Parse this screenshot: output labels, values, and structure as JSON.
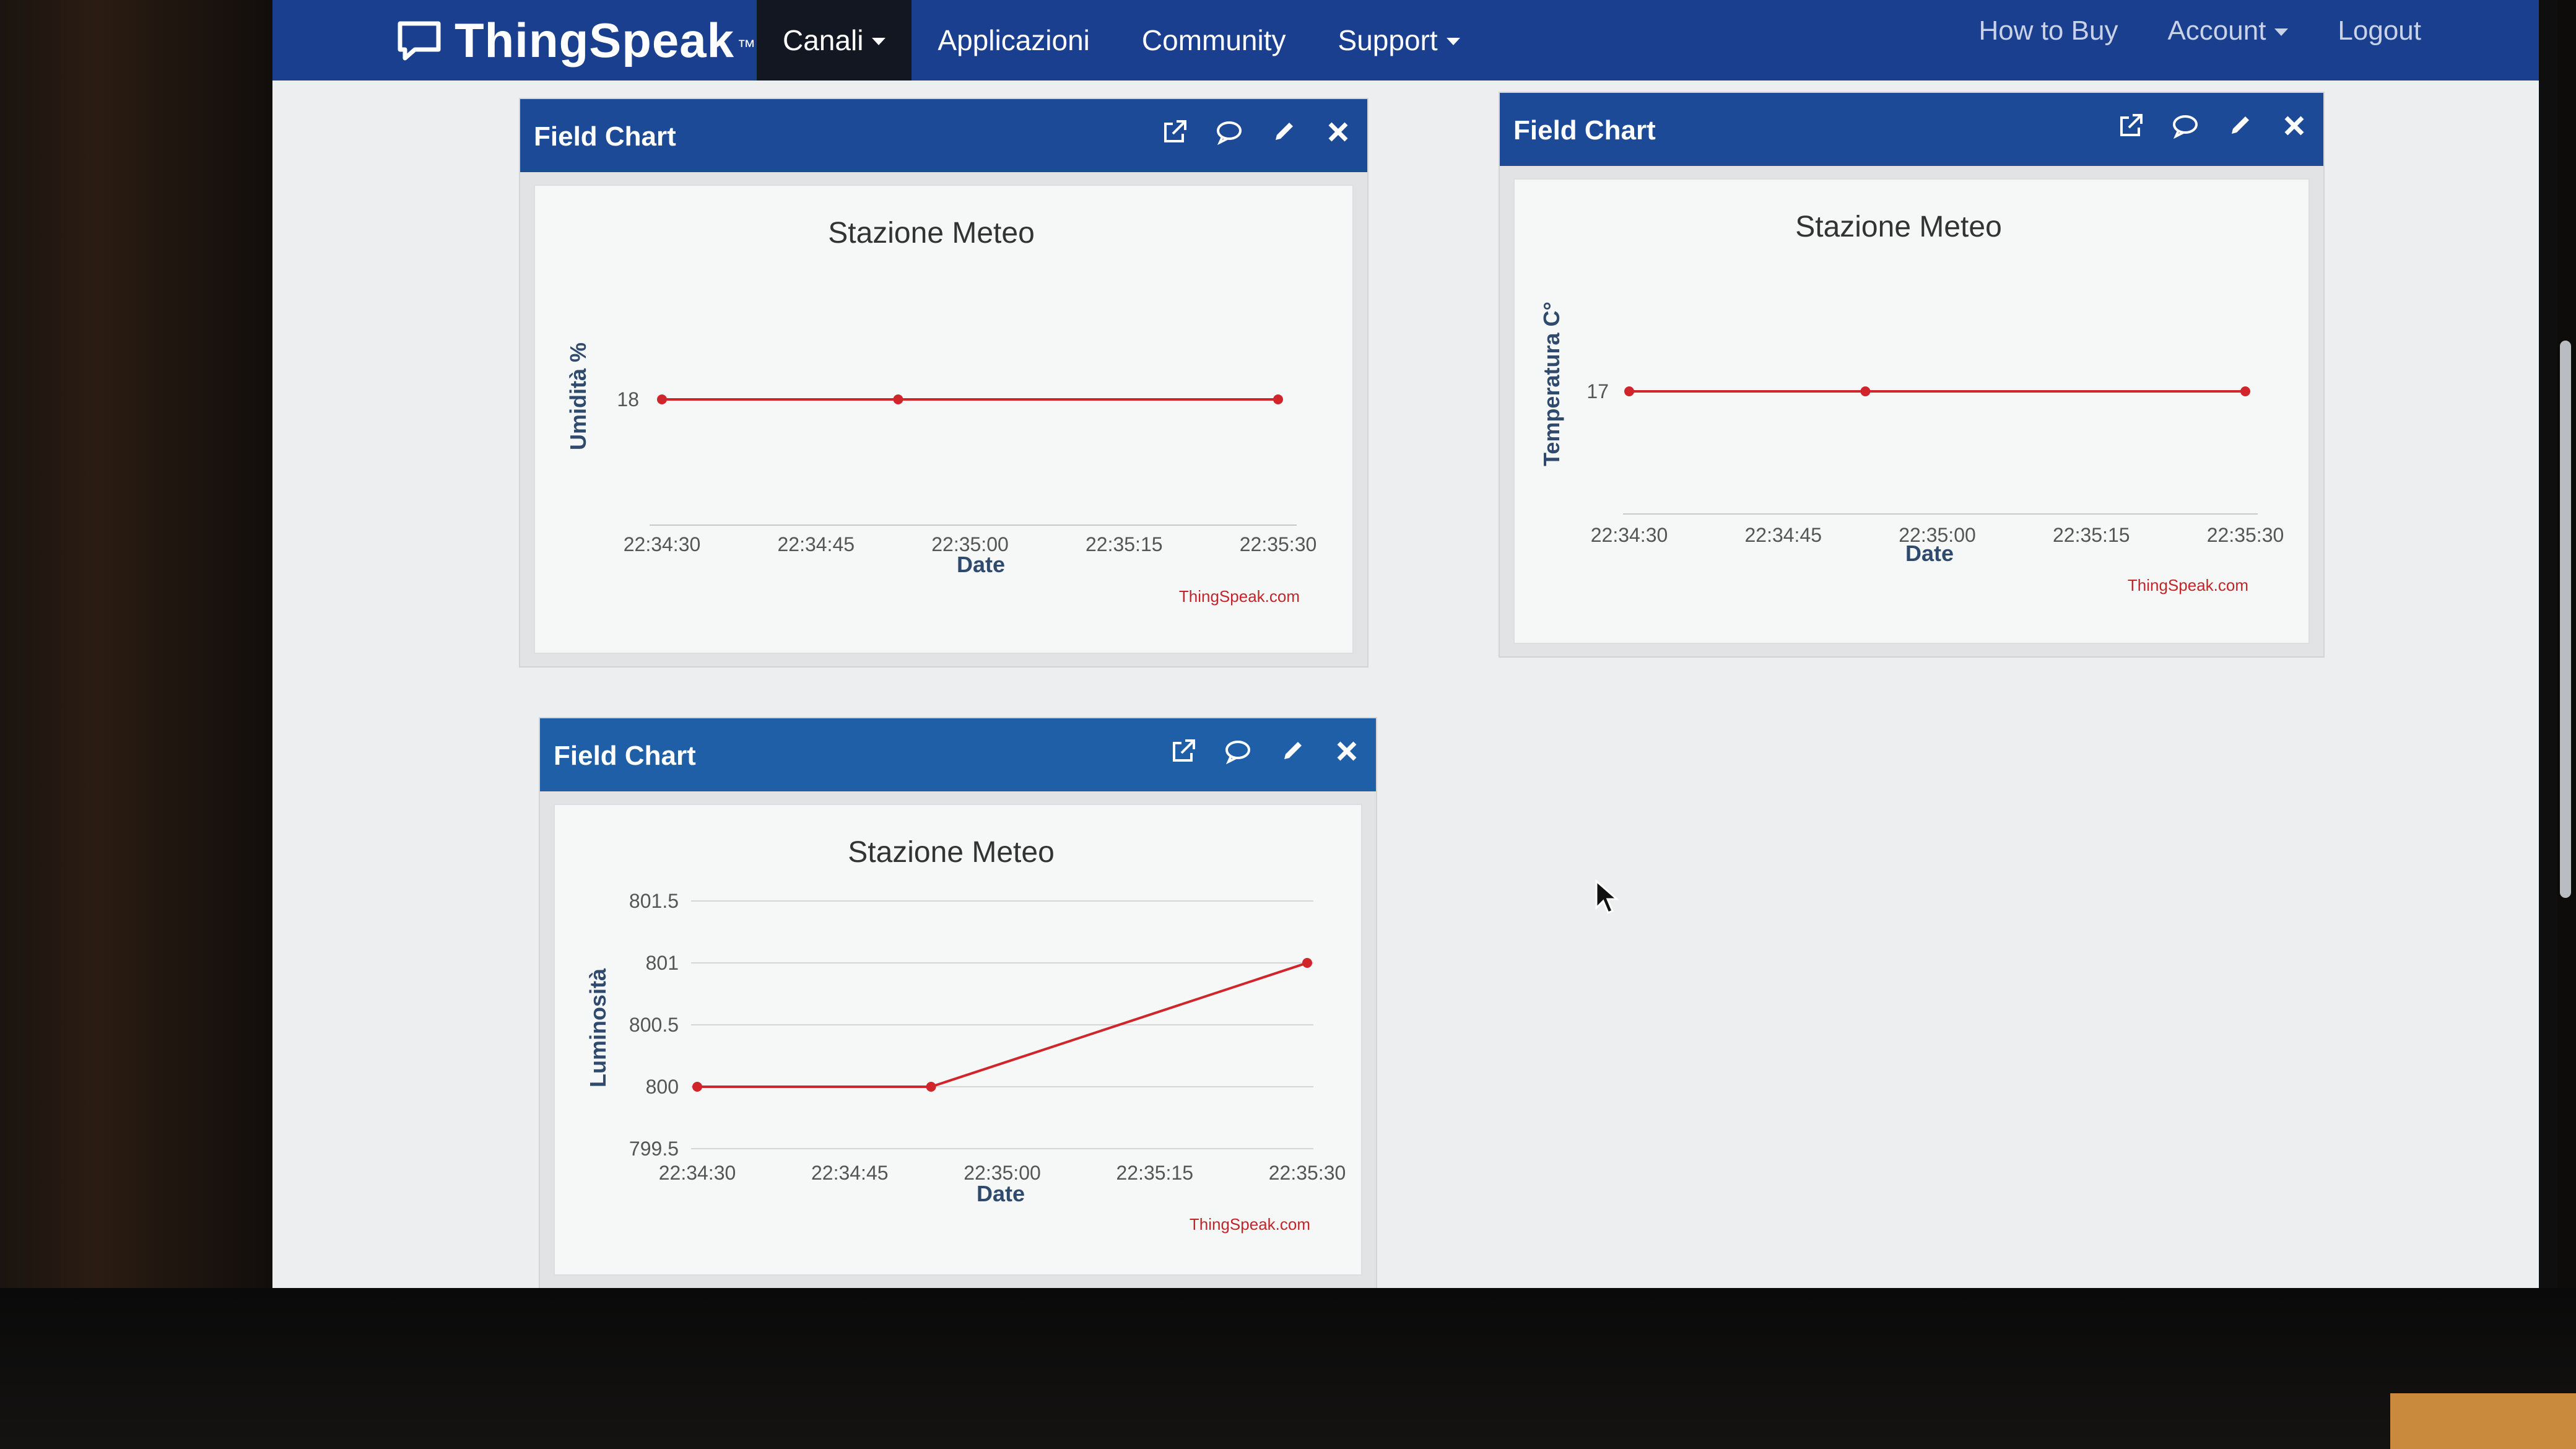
{
  "navbar": {
    "brand": "ThingSpeak",
    "brand_tm": "™",
    "left_items": [
      {
        "label": "Canali",
        "dropdown": true,
        "active": true
      },
      {
        "label": "Applicazioni",
        "dropdown": false,
        "active": false
      },
      {
        "label": "Community",
        "dropdown": false,
        "active": false
      },
      {
        "label": "Support",
        "dropdown": true,
        "active": false
      }
    ],
    "right_items": [
      {
        "label": "How to Buy",
        "dropdown": false
      },
      {
        "label": "Account",
        "dropdown": true
      },
      {
        "label": "Logout",
        "dropdown": false
      }
    ],
    "colors": {
      "background": "#1a3f8f",
      "active_item": "#131722"
    }
  },
  "panels": [
    {
      "title": "Field Chart",
      "actions": [
        "external-link-icon",
        "comment-icon",
        "pencil-icon",
        "close-icon"
      ],
      "credit": "ThingSpeak.com",
      "chart_data": {
        "type": "line",
        "title": "Stazione Meteo",
        "xlabel": "Date",
        "ylabel": "Umidità %",
        "x_ticks": [
          "22:34:30",
          "22:34:45",
          "22:35:00",
          "22:35:15",
          "22:35:30"
        ],
        "y_ticks": [
          "18"
        ],
        "ylim": [
          17.5,
          18.5
        ],
        "series": [
          {
            "color": "#d0262b",
            "x": [
              "22:34:30",
              "22:34:53",
              "22:35:30"
            ],
            "y": [
              18,
              18,
              18
            ]
          }
        ]
      }
    },
    {
      "title": "Field Chart",
      "actions": [
        "external-link-icon",
        "comment-icon",
        "pencil-icon",
        "close-icon"
      ],
      "credit": "ThingSpeak.com",
      "chart_data": {
        "type": "line",
        "title": "Stazione Meteo",
        "xlabel": "Date",
        "ylabel": "Temperatura C°",
        "x_ticks": [
          "22:34:30",
          "22:34:45",
          "22:35:00",
          "22:35:15",
          "22:35:30"
        ],
        "y_ticks": [
          "17"
        ],
        "ylim": [
          16.5,
          17.5
        ],
        "series": [
          {
            "color": "#d0262b",
            "x": [
              "22:34:30",
              "22:34:53",
              "22:35:30"
            ],
            "y": [
              17,
              17,
              17
            ]
          }
        ]
      }
    },
    {
      "title": "Field Chart",
      "actions": [
        "external-link-icon",
        "comment-icon",
        "pencil-icon",
        "close-icon"
      ],
      "credit": "ThingSpeak.com",
      "chart_data": {
        "type": "line",
        "title": "Stazione Meteo",
        "xlabel": "Date",
        "ylabel": "Luminosità",
        "x_ticks": [
          "22:34:30",
          "22:34:45",
          "22:35:00",
          "22:35:15",
          "22:35:30"
        ],
        "y_ticks": [
          "799.5",
          "800",
          "800.5",
          "801",
          "801.5"
        ],
        "ylim": [
          799.5,
          801.5
        ],
        "grid": true,
        "series": [
          {
            "color": "#d0262b",
            "x": [
              "22:34:30",
              "22:34:53",
              "22:35:30"
            ],
            "y": [
              800,
              800,
              801
            ]
          }
        ]
      }
    }
  ]
}
